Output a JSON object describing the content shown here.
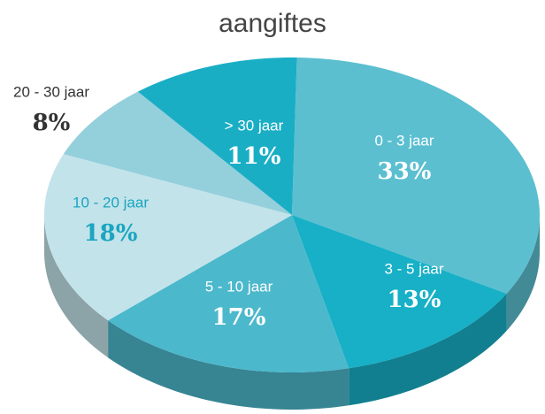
{
  "chart_data": {
    "type": "pie3d",
    "title": "aangiftes",
    "categories": [
      "0 - 3 jaar",
      "3 - 5 jaar",
      "5 - 10 jaar",
      "10 - 20 jaar",
      "20 - 30 jaar",
      "> 30 jaar"
    ],
    "values": [
      33,
      13,
      17,
      18,
      8,
      11
    ],
    "value_labels": [
      "33%",
      "13%",
      "17%",
      "18%",
      "8%",
      "11%"
    ],
    "colors": [
      "#5bbfd0",
      "#17b0c6",
      "#4cb8cc",
      "#c2e3ea",
      "#94cfdc",
      "#1aaec5"
    ]
  }
}
